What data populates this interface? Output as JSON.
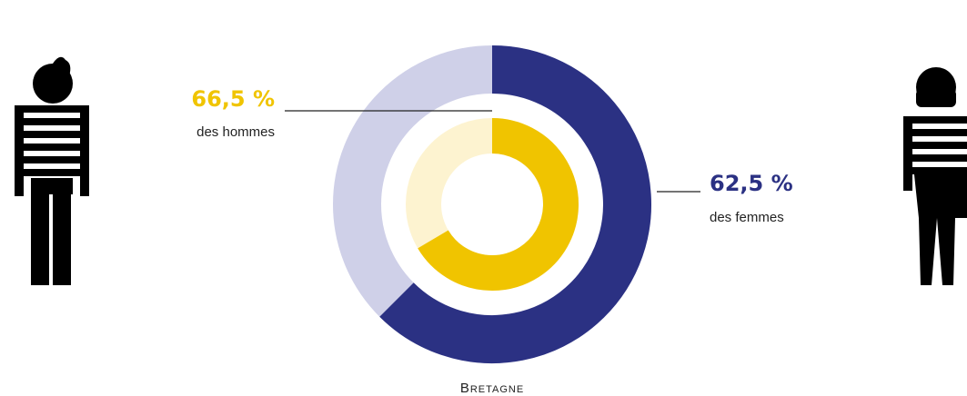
{
  "chart_data": {
    "type": "donut",
    "title": "Bretagne",
    "series": [
      {
        "name": "des femmes",
        "values": [
          62.5
        ],
        "value_labels": [
          "62,5 %"
        ],
        "color": "#2b3183",
        "rest_color": "#cfd0e8"
      },
      {
        "name": "des hommes",
        "values": [
          66.5
        ],
        "value_labels": [
          "66,5 %"
        ],
        "color": "#f0c400",
        "rest_color": "#fdf3d0"
      }
    ]
  }
}
